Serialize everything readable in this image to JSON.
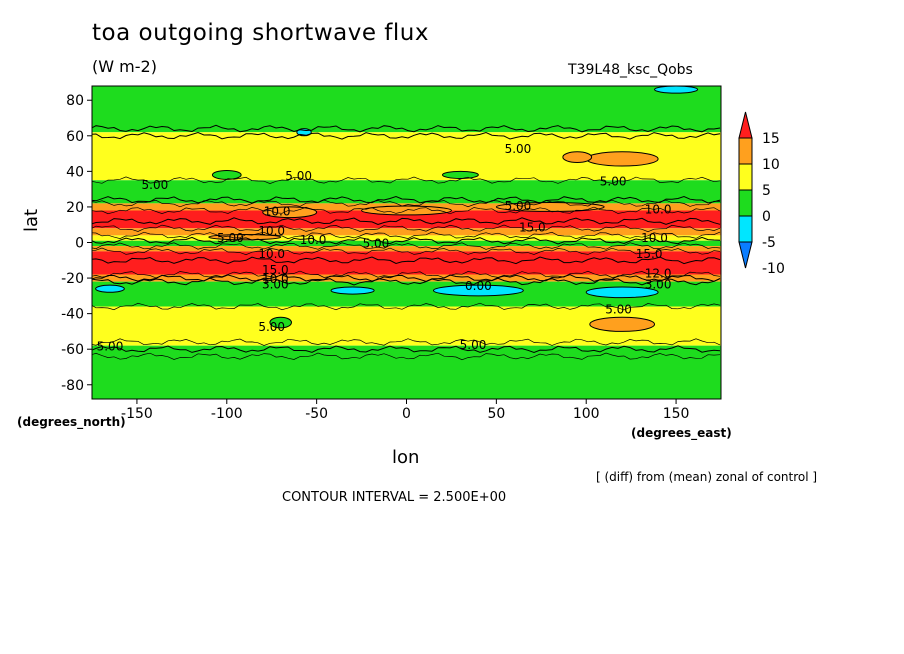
{
  "chart_data": {
    "type": "heatmap",
    "title": "toa outgoing shortwave flux",
    "units": "(W m-2)",
    "run_id": "T39L48_ksc_Qobs",
    "xlabel": "lon",
    "ylabel": "lat",
    "x_unit_label": "(degrees_east)",
    "y_unit_label": "(degrees_north)",
    "xlim": [
      -175,
      175
    ],
    "ylim": [
      -88,
      88
    ],
    "x_ticks": [
      -150,
      -100,
      -50,
      0,
      50,
      100,
      150
    ],
    "x_tick_labels": [
      "-150",
      "-100",
      "-50",
      "0",
      "50",
      "100",
      "150"
    ],
    "y_ticks": [
      -80,
      -60,
      -40,
      -20,
      0,
      20,
      40,
      60,
      80
    ],
    "y_tick_labels": [
      "-80",
      "-60",
      "-40",
      "-20",
      "0",
      "20",
      "40",
      "60",
      "80"
    ],
    "note": "[ (diff) from (mean) zonal of control ]",
    "contour_interval_text": "CONTOUR INTERVAL = 2.500E+00",
    "colorbar": {
      "levels": [
        -10,
        -5,
        0,
        5,
        10,
        15
      ],
      "labels": [
        "15",
        "10",
        "5",
        "0",
        "-5",
        "-10"
      ],
      "colors": [
        "#0a7dff",
        "#00e6ff",
        "#1edc1e",
        "#ffff1e",
        "#ffa01e",
        "#ff1e1e"
      ]
    },
    "bands": [
      {
        "lat_from": 88,
        "lat_to": 62,
        "value": 2,
        "color": "#1edc1e"
      },
      {
        "lat_from": 62,
        "lat_to": 35,
        "value": 6,
        "color": "#ffff1e"
      },
      {
        "lat_from": 35,
        "lat_to": 22,
        "value": 2,
        "color": "#1edc1e"
      },
      {
        "lat_from": 22,
        "lat_to": 18,
        "value": 11,
        "color": "#ffa01e"
      },
      {
        "lat_from": 18,
        "lat_to": 8,
        "value": 16,
        "color": "#ff1e1e"
      },
      {
        "lat_from": 8,
        "lat_to": 4,
        "value": 11,
        "color": "#ffa01e"
      },
      {
        "lat_from": 4,
        "lat_to": 1,
        "value": 6,
        "color": "#ffff1e"
      },
      {
        "lat_from": 1,
        "lat_to": -2,
        "value": 2,
        "color": "#1edc1e"
      },
      {
        "lat_from": -2,
        "lat_to": -5,
        "value": 11,
        "color": "#ffa01e"
      },
      {
        "lat_from": -5,
        "lat_to": -18,
        "value": 16,
        "color": "#ff1e1e"
      },
      {
        "lat_from": -18,
        "lat_to": -22,
        "value": 11,
        "color": "#ffa01e"
      },
      {
        "lat_from": -22,
        "lat_to": -36,
        "value": 2,
        "color": "#1edc1e"
      },
      {
        "lat_from": -36,
        "lat_to": -58,
        "value": 6,
        "color": "#ffff1e"
      },
      {
        "lat_from": -58,
        "lat_to": -88,
        "value": 2,
        "color": "#1edc1e"
      }
    ],
    "patches": [
      {
        "lon": 120,
        "lat": 47,
        "rx": 20,
        "ry": 4,
        "color": "#ffa01e"
      },
      {
        "lon": 95,
        "lat": 48,
        "rx": 8,
        "ry": 3,
        "color": "#ffa01e"
      },
      {
        "lon": -65,
        "lat": 17,
        "rx": 15,
        "ry": 3,
        "color": "#ffa01e"
      },
      {
        "lon": 0,
        "lat": 18,
        "rx": 25,
        "ry": 2.5,
        "color": "#ffa01e"
      },
      {
        "lon": 80,
        "lat": 20,
        "rx": 30,
        "ry": 2.5,
        "color": "#ffa01e"
      },
      {
        "lon": -90,
        "lat": 3,
        "rx": 20,
        "ry": 1.5,
        "color": "#ffa01e"
      },
      {
        "lon": 120,
        "lat": -46,
        "rx": 18,
        "ry": 4,
        "color": "#ffa01e"
      },
      {
        "lon": 40,
        "lat": -27,
        "rx": 25,
        "ry": 3,
        "color": "#00e6ff"
      },
      {
        "lon": -30,
        "lat": -27,
        "rx": 12,
        "ry": 2,
        "color": "#00e6ff"
      },
      {
        "lon": 120,
        "lat": -28,
        "rx": 20,
        "ry": 3,
        "color": "#00e6ff"
      },
      {
        "lon": -165,
        "lat": -26,
        "rx": 8,
        "ry": 2,
        "color": "#00e6ff"
      },
      {
        "lon": -57,
        "lat": 62,
        "rx": 4,
        "ry": 2,
        "color": "#00e6ff"
      },
      {
        "lon": 150,
        "lat": 86,
        "rx": 12,
        "ry": 2,
        "color": "#00e6ff"
      },
      {
        "lon": -100,
        "lat": 38,
        "rx": 8,
        "ry": 2.5,
        "color": "#1edc1e"
      },
      {
        "lon": 30,
        "lat": 38,
        "rx": 10,
        "ry": 2,
        "color": "#1edc1e"
      },
      {
        "lon": -70,
        "lat": -45,
        "rx": 6,
        "ry": 3,
        "color": "#1edc1e"
      }
    ],
    "contour_lines_lat": [
      64,
      60,
      35,
      24,
      22,
      18,
      12,
      8,
      4,
      1,
      -2,
      -5,
      -10,
      -18,
      -20,
      -22,
      -36,
      -56,
      -60,
      -64
    ],
    "contour_labels": [
      {
        "text": "5.00",
        "lon": 62,
        "lat": 53
      },
      {
        "text": "5.00",
        "lon": -140,
        "lat": 33
      },
      {
        "text": "5.00",
        "lon": -60,
        "lat": 38
      },
      {
        "text": "5.00",
        "lon": 115,
        "lat": 35
      },
      {
        "text": "5.00",
        "lon": 62,
        "lat": 21
      },
      {
        "text": "10.0",
        "lon": -72,
        "lat": 18
      },
      {
        "text": "10.0",
        "lon": 140,
        "lat": 19
      },
      {
        "text": "15.0",
        "lon": 70,
        "lat": 9
      },
      {
        "text": "10.0",
        "lon": -75,
        "lat": 7
      },
      {
        "text": "5.00",
        "lon": -98,
        "lat": 3
      },
      {
        "text": "10.0",
        "lon": -52,
        "lat": 2
      },
      {
        "text": "5.00",
        "lon": -17,
        "lat": 0
      },
      {
        "text": "10.0",
        "lon": 138,
        "lat": 3
      },
      {
        "text": "10.0",
        "lon": -75,
        "lat": -6
      },
      {
        "text": "15.0",
        "lon": 135,
        "lat": -6
      },
      {
        "text": "15.0",
        "lon": -73,
        "lat": -15
      },
      {
        "text": "10.0",
        "lon": -73,
        "lat": -20
      },
      {
        "text": "3.00",
        "lon": -73,
        "lat": -23
      },
      {
        "text": "12.0",
        "lon": 140,
        "lat": -17
      },
      {
        "text": "3.00",
        "lon": 140,
        "lat": -23
      },
      {
        "text": "0.00",
        "lon": 40,
        "lat": -24
      },
      {
        "text": "5.00",
        "lon": -75,
        "lat": -47
      },
      {
        "text": "5.00",
        "lon": 118,
        "lat": -37
      },
      {
        "text": "5.00",
        "lon": -165,
        "lat": -58
      },
      {
        "text": "5.00",
        "lon": 37,
        "lat": -57
      }
    ]
  },
  "text": {
    "title": "toa outgoing shortwave flux",
    "units": "(W m-2)",
    "run_id": "T39L48_ksc_Qobs",
    "xlabel": "lon",
    "ylabel": "lat",
    "degrees_north": "(degrees_north)",
    "degrees_east": "(degrees_east)",
    "note": "[ (diff) from (mean) zonal of control ]",
    "contour_interval": "CONTOUR INTERVAL = 2.500E+00"
  }
}
